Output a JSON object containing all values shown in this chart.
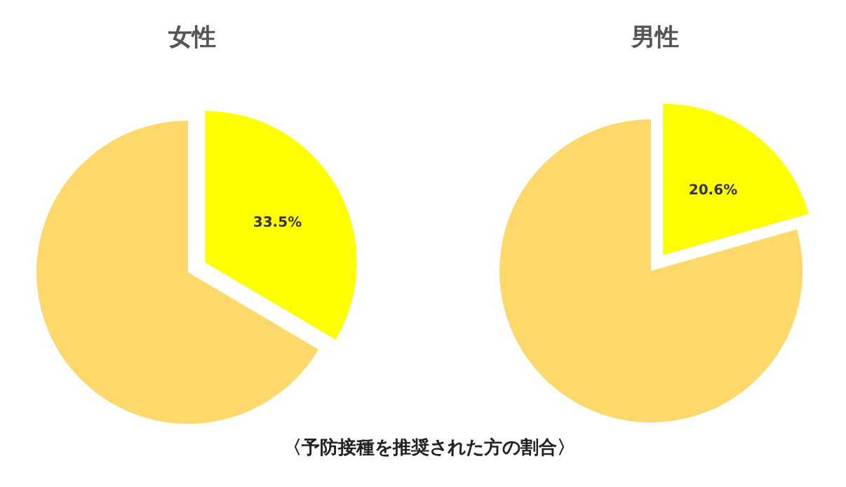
{
  "chart_data": [
    {
      "type": "pie",
      "title": "女性",
      "categories": [
        null,
        null
      ],
      "values": [
        33.5,
        66.5
      ],
      "colors": [
        "#ffff00",
        "#fdd96b"
      ],
      "value_labels": [
        "33.5%",
        null
      ],
      "annotations": [
        "〈予防接種を推奨された方の割合〉"
      ]
    },
    {
      "type": "pie",
      "title": "男性",
      "categories": [
        null,
        null
      ],
      "values": [
        20.6,
        79.4
      ],
      "colors": [
        "#ffff00",
        "#fdd96b"
      ],
      "value_labels": [
        "20.6%",
        null
      ]
    }
  ]
}
